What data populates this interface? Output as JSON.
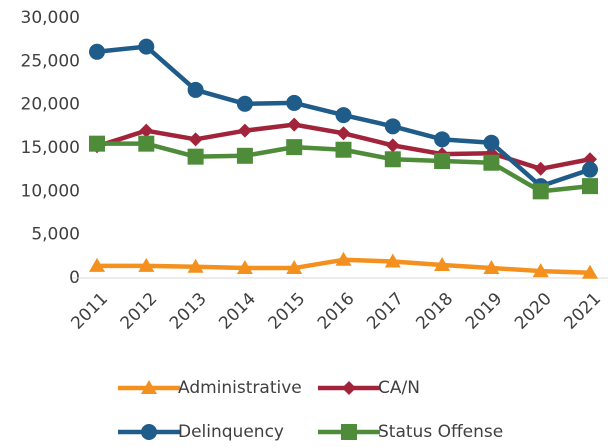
{
  "chart_data": {
    "type": "line",
    "categories": [
      "2011",
      "2012",
      "2013",
      "2014",
      "2015",
      "2016",
      "2017",
      "2018",
      "2019",
      "2020",
      "2021"
    ],
    "series": [
      {
        "name": "Administrative",
        "color": "#f4901e",
        "marker": "triangle",
        "values": [
          1400,
          1400,
          1300,
          1150,
          1150,
          2100,
          1900,
          1500,
          1150,
          800,
          600
        ]
      },
      {
        "name": "CA/N",
        "color": "#a2243b",
        "marker": "diamond",
        "values": [
          15200,
          17000,
          16000,
          17000,
          17700,
          16700,
          15300,
          14300,
          14400,
          12600,
          13700
        ]
      },
      {
        "name": "Delinquency",
        "color": "#1f5c8a",
        "marker": "circle",
        "values": [
          26100,
          26700,
          21700,
          20100,
          20200,
          18800,
          17500,
          16000,
          15600,
          10600,
          12500
        ]
      },
      {
        "name": "Status Offense",
        "color": "#4e8c3a",
        "marker": "square",
        "values": [
          15500,
          15500,
          14000,
          14100,
          15100,
          14800,
          13700,
          13500,
          13300,
          10000,
          10600
        ]
      }
    ],
    "ylim": [
      0,
      30000
    ],
    "yticks": [
      0,
      {
        "value": 5000,
        "label": "5,000"
      },
      {
        "value": 10000,
        "label": "10,000"
      },
      {
        "value": 15000,
        "label": "15,000"
      },
      {
        "value": 20000,
        "label": "20,000"
      },
      {
        "value": 25000,
        "label": "25,000"
      },
      {
        "value": 30000,
        "label": "30,000"
      }
    ],
    "grid": false,
    "legend": "bottom"
  }
}
